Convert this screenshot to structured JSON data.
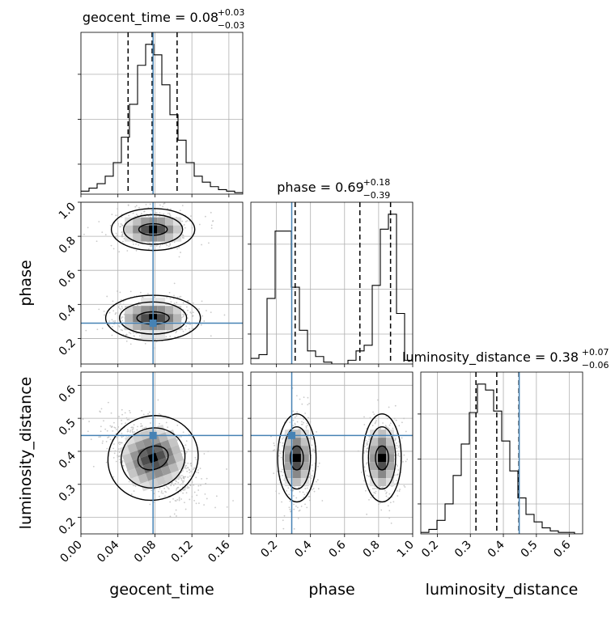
{
  "chart_data": {
    "type": "corner",
    "parameters": [
      {
        "key": "geocent_time",
        "label": "geocent_time",
        "range": [
          0.0,
          0.175
        ],
        "ticks": [
          0.0,
          0.04,
          0.08,
          0.12,
          0.16
        ],
        "tick_labels": [
          "0.00",
          "0.04",
          "0.08",
          "0.12",
          "0.16"
        ],
        "truth": 0.078,
        "quantiles": [
          0.051,
          0.077,
          0.104
        ],
        "title_text": "geocent_time = 0.08",
        "title_plus": "+0.03",
        "title_minus": "−0.03",
        "hist": {
          "edges_start": 0.0,
          "bin_width": 0.00875,
          "counts": [
            2,
            4,
            7,
            12,
            21,
            38,
            60,
            86,
            100,
            93,
            73,
            53,
            36,
            21,
            12,
            8,
            5,
            3,
            2,
            1
          ]
        }
      },
      {
        "key": "phase",
        "label": "phase",
        "range": [
          0.05,
          1.0
        ],
        "ticks": [
          0.2,
          0.4,
          0.6,
          0.8,
          1.0
        ],
        "tick_labels": [
          "0.2",
          "0.4",
          "0.6",
          "0.8",
          "1.0"
        ],
        "truth": 0.29,
        "quantiles": [
          0.31,
          0.69,
          0.87
        ],
        "title_text": "phase = 0.69",
        "title_plus": "+0.18",
        "title_minus": "−0.39",
        "hist": {
          "edges_start": 0.05,
          "bin_width": 0.0475,
          "counts": [
            3,
            5,
            35,
            71,
            71,
            41,
            18,
            7,
            4,
            1,
            0,
            0,
            2,
            7,
            10,
            42,
            72,
            80,
            27,
            2
          ]
        }
      },
      {
        "key": "luminosity_distance",
        "label": "luminosity_distance",
        "range": [
          0.15,
          0.64
        ],
        "ticks": [
          0.2,
          0.3,
          0.4,
          0.5,
          0.6
        ],
        "tick_labels": [
          "0.2",
          "0.3",
          "0.4",
          "0.5",
          "0.6"
        ],
        "truth": 0.448,
        "quantiles": [
          0.317,
          0.38,
          0.447
        ],
        "title_text": "luminosity_distance = 0.38",
        "title_plus": "+0.07",
        "title_minus": "−0.06",
        "hist": {
          "edges_start": 0.15,
          "bin_width": 0.0245,
          "counts": [
            1,
            3,
            9,
            20,
            39,
            60,
            81,
            100,
            96,
            82,
            62,
            42,
            24,
            13,
            8,
            4,
            2,
            1,
            1,
            0
          ]
        }
      }
    ],
    "contour_levels": 3,
    "grid": true,
    "truth_color": "#4682b4",
    "hist_color": "#000000",
    "scatter_color": "#bdbdbd"
  }
}
